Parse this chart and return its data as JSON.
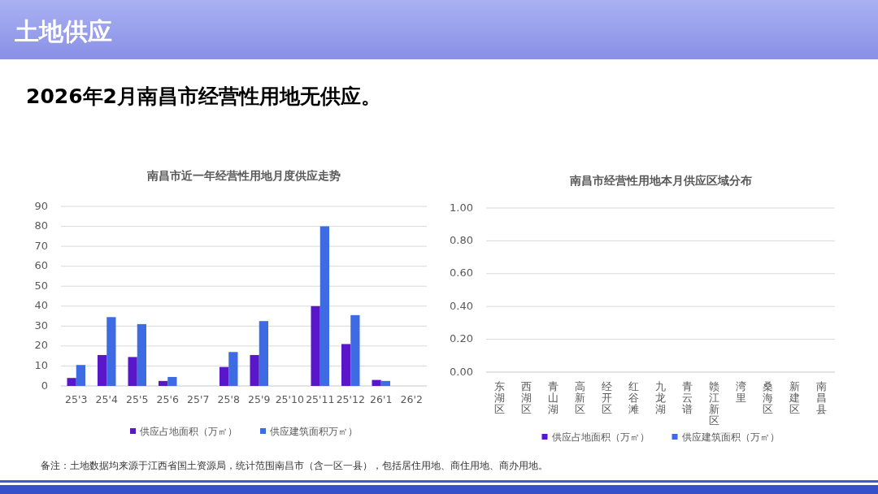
{
  "chart_data": [
    {
      "type": "other",
      "title": "土地供应",
      "subtitle": "2026年2月南昌市经营性用地无供应。",
      "annotations": [
        "备注：土地数据均来源于江西省国土资源局，统计范围南昌市（含一区一县），包括居住用地、商住用地、商办用地。"
      ]
    },
    {
      "type": "bar",
      "title": "南昌市近一年经营性用地月度供应走势",
      "categories": [
        "25'3",
        "25'4",
        "25'5",
        "25'6",
        "25'7",
        "25'8",
        "25'9",
        "25'10",
        "25'11",
        "25'12",
        "26'1",
        "26'2"
      ],
      "series": [
        {
          "name": "供应占地面积（万㎡）",
          "color": "#5a17c9",
          "values": [
            4,
            15.5,
            14.5,
            2.5,
            0,
            9.5,
            15.5,
            0,
            40,
            21,
            3,
            0
          ]
        },
        {
          "name": "供应建筑面积万㎡）",
          "color": "#3d6be3",
          "values": [
            10.5,
            34.5,
            31,
            4.5,
            0,
            17,
            32.5,
            0,
            80,
            35.5,
            2.5,
            0
          ]
        }
      ],
      "ylim": [
        0,
        90
      ],
      "yticks": [
        0,
        10,
        20,
        30,
        40,
        50,
        60,
        70,
        80,
        90
      ],
      "grid": "y",
      "legend": "bottom"
    },
    {
      "type": "bar",
      "title": "南昌市经营性用地本月供应区域分布",
      "categories": [
        "东湖区",
        "西湖区",
        "青山湖",
        "高新区",
        "经开区",
        "红谷滩",
        "九龙湖",
        "青云谱",
        "赣江新区",
        "湾里",
        "桑海区",
        "新建区",
        "南昌县"
      ],
      "series": [
        {
          "name": "供应占地面积（万㎡）",
          "color": "#5a17c9",
          "values": [
            0,
            0,
            0,
            0,
            0,
            0,
            0,
            0,
            0,
            0,
            0,
            0,
            0
          ]
        },
        {
          "name": "供应建筑面积（万㎡）",
          "color": "#3d6be3",
          "values": [
            0,
            0,
            0,
            0,
            0,
            0,
            0,
            0,
            0,
            0,
            0,
            0,
            0
          ]
        }
      ],
      "ylim": [
        0,
        1
      ],
      "yticks": [
        {
          "value": 0,
          "label": "0.00"
        },
        {
          "value": 0.2,
          "label": "0.20"
        },
        {
          "value": 0.4,
          "label": "0.40"
        },
        {
          "value": 0.6,
          "label": "0.60"
        },
        {
          "value": 0.8,
          "label": "0.80"
        },
        {
          "value": 1,
          "label": "1.00"
        }
      ],
      "grid": "y",
      "legend": "bottom"
    }
  ]
}
